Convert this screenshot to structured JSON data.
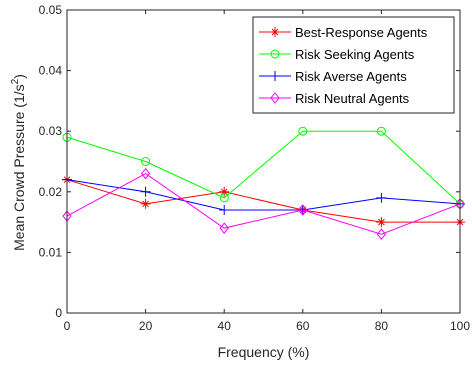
{
  "chart_data": {
    "type": "line",
    "title": "",
    "xlabel": "Frequency (%)",
    "ylabel_prefix": "Mean Crowd Pressure (1/s",
    "ylabel_sup": "2",
    "ylabel_suffix": ")",
    "xlim": [
      0,
      100
    ],
    "ylim": [
      0,
      0.05
    ],
    "xticks": [
      0,
      20,
      40,
      60,
      80,
      100
    ],
    "xtick_labels": [
      "0",
      "20",
      "40",
      "60",
      "80",
      "100"
    ],
    "yticks": [
      0,
      0.01,
      0.02,
      0.03,
      0.04,
      0.05
    ],
    "ytick_labels": [
      "0",
      "0.01",
      "0.02",
      "0.03",
      "0.04",
      "0.05"
    ],
    "legend_position": "top-right",
    "grid": false,
    "x": [
      0,
      20,
      40,
      60,
      80,
      100
    ],
    "series": [
      {
        "name": "Best-Response Agents",
        "color": "#ff0000",
        "marker": "asterisk",
        "values": [
          0.022,
          0.018,
          0.02,
          0.017,
          0.015,
          0.015
        ]
      },
      {
        "name": "Risk Seeking Agents",
        "color": "#00ff00",
        "marker": "circle",
        "values": [
          0.029,
          0.025,
          0.019,
          0.03,
          0.03,
          0.018
        ]
      },
      {
        "name": "Risk Averse Agents",
        "color": "#0000ff",
        "marker": "plus",
        "values": [
          0.022,
          0.02,
          0.017,
          0.017,
          0.019,
          0.018
        ]
      },
      {
        "name": "Risk Neutral Agents",
        "color": "#ff00ff",
        "marker": "diamond",
        "values": [
          0.016,
          0.023,
          0.014,
          0.017,
          0.013,
          0.018
        ]
      }
    ]
  }
}
